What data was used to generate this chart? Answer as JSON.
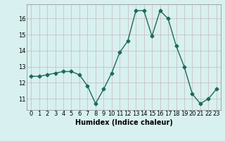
{
  "x": [
    0,
    1,
    2,
    3,
    4,
    5,
    6,
    7,
    8,
    9,
    10,
    11,
    12,
    13,
    14,
    15,
    16,
    17,
    18,
    19,
    20,
    21,
    22,
    23
  ],
  "y": [
    12.4,
    12.4,
    12.5,
    12.6,
    12.7,
    12.7,
    12.5,
    11.8,
    10.7,
    11.6,
    12.6,
    13.9,
    14.6,
    16.5,
    16.5,
    14.9,
    16.5,
    16.0,
    14.3,
    13.0,
    11.3,
    10.7,
    11.0,
    11.6
  ],
  "line_color": "#1a6b5a",
  "marker": "D",
  "marker_size": 2.5,
  "background_color": "#d8f0f0",
  "grid_color": "#c8b8b8",
  "xlabel": "Humidex (Indice chaleur)",
  "xlabel_fontsize": 7,
  "ylabel_ticks": [
    11,
    12,
    13,
    14,
    15,
    16
  ],
  "ylim": [
    10.3,
    16.9
  ],
  "xlim": [
    -0.5,
    23.5
  ],
  "tick_fontsize": 6,
  "line_width": 1.0
}
